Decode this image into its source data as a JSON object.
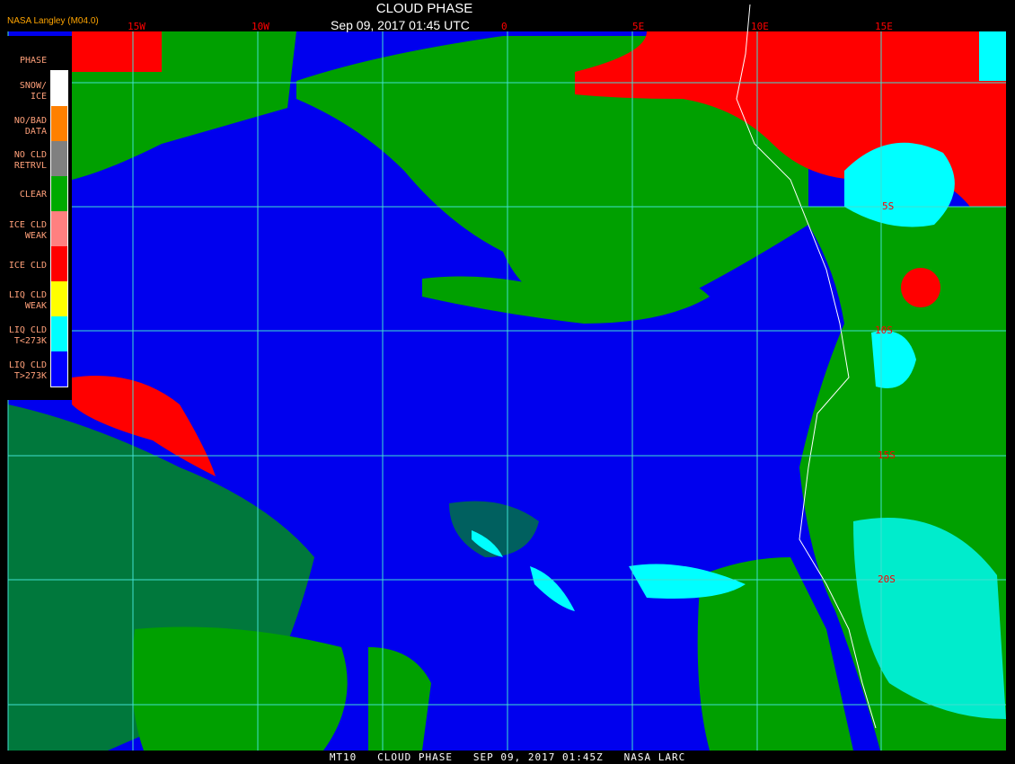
{
  "header": {
    "title": "CLOUD PHASE",
    "datetime": "Sep 09, 2017 01:45 UTC",
    "version": "NASA Langley (M04.0)"
  },
  "longitude_labels": [
    "15W",
    "10W",
    "0",
    "5E",
    "10E",
    "15E"
  ],
  "latitude_labels": [
    "5S",
    "10S",
    "15S",
    "20S"
  ],
  "legend": {
    "title": "PHASE",
    "items": [
      {
        "label": "SNOW/\nICE",
        "color": "#ffffff"
      },
      {
        "label": "NO/BAD\nDATA",
        "color": "#ff8000"
      },
      {
        "label": "NO CLD\nRETRVL",
        "color": "#808080"
      },
      {
        "label": "CLEAR",
        "color": "#00aa00"
      },
      {
        "label": "ICE CLD\nWEAK",
        "color": "#ff8080"
      },
      {
        "label": "ICE CLD",
        "color": "#ff0000"
      },
      {
        "label": "LIQ CLD\nWEAK",
        "color": "#ffff00"
      },
      {
        "label": "LIQ CLD\nT<273K",
        "color": "#00ffff"
      },
      {
        "label": "LIQ CLD\nT>273K",
        "color": "#0000ff"
      }
    ]
  },
  "footer": "MT10   CLOUD PHASE   SEP 09, 2017 01:45Z   NASA LARC",
  "colors": {
    "grid": "#40e0d0",
    "coastline": "#ffffff",
    "labels": "#ff0000"
  }
}
